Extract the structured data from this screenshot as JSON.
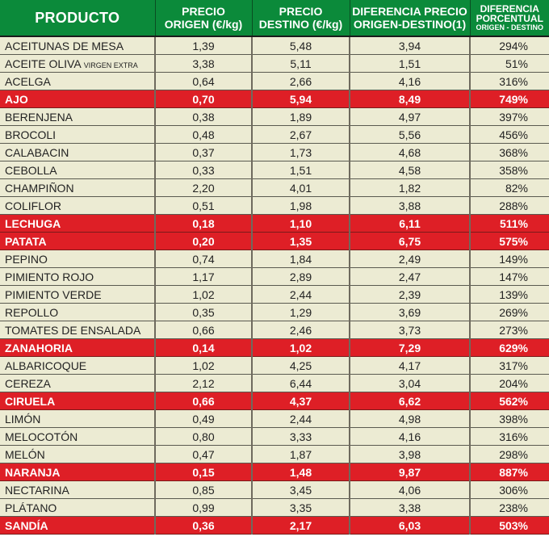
{
  "table": {
    "headers": {
      "product": "PRODUCTO",
      "origin_line1": "PRECIO",
      "origin_line2": "ORIGEN (€/kg)",
      "dest_line1": "PRECIO",
      "dest_line2": "DESTINO (€/kg)",
      "diff_line1": "DIFERENCIA PRECIO",
      "diff_line2": "ORIGEN-DESTINO(1)",
      "pct_line1": "DIFERENCIA",
      "pct_line2": "PORCENTUAL",
      "pct_line3": "ORIGEN - DESTINO"
    },
    "colors": {
      "header_bg": "#0b8a3a",
      "row_bg": "#ecebd3",
      "highlight_bg": "#de1f26",
      "highlight_text": "#ffffff"
    },
    "rows": [
      {
        "product": "ACEITUNAS DE MESA",
        "suffix": "",
        "origin": "1,39",
        "dest": "5,48",
        "diff": "3,94",
        "pct": "294%",
        "highlight": false
      },
      {
        "product": "ACEITE OLIVA ",
        "suffix": "VIRGEN EXTRA",
        "origin": "3,38",
        "dest": "5,11",
        "diff": "1,51",
        "pct": "51%",
        "highlight": false
      },
      {
        "product": "ACELGA",
        "suffix": "",
        "origin": "0,64",
        "dest": "2,66",
        "diff": "4,16",
        "pct": "316%",
        "highlight": false
      },
      {
        "product": "AJO",
        "suffix": "",
        "origin": "0,70",
        "dest": "5,94",
        "diff": "8,49",
        "pct": "749%",
        "highlight": true
      },
      {
        "product": "BERENJENA",
        "suffix": "",
        "origin": "0,38",
        "dest": "1,89",
        "diff": "4,97",
        "pct": "397%",
        "highlight": false
      },
      {
        "product": "BROCOLI",
        "suffix": "",
        "origin": "0,48",
        "dest": "2,67",
        "diff": "5,56",
        "pct": "456%",
        "highlight": false
      },
      {
        "product": "CALABACIN",
        "suffix": "",
        "origin": "0,37",
        "dest": "1,73",
        "diff": "4,68",
        "pct": "368%",
        "highlight": false
      },
      {
        "product": "CEBOLLA",
        "suffix": "",
        "origin": "0,33",
        "dest": "1,51",
        "diff": "4,58",
        "pct": "358%",
        "highlight": false
      },
      {
        "product": "CHAMPIÑON",
        "suffix": "",
        "origin": "2,20",
        "dest": "4,01",
        "diff": "1,82",
        "pct": "82%",
        "highlight": false
      },
      {
        "product": "COLIFLOR",
        "suffix": "",
        "origin": "0,51",
        "dest": "1,98",
        "diff": "3,88",
        "pct": "288%",
        "highlight": false
      },
      {
        "product": "LECHUGA",
        "suffix": "",
        "origin": "0,18",
        "dest": "1,10",
        "diff": "6,11",
        "pct": "511%",
        "highlight": true
      },
      {
        "product": "PATATA",
        "suffix": "",
        "origin": "0,20",
        "dest": "1,35",
        "diff": "6,75",
        "pct": "575%",
        "highlight": true
      },
      {
        "product": "PEPINO",
        "suffix": "",
        "origin": "0,74",
        "dest": "1,84",
        "diff": "2,49",
        "pct": "149%",
        "highlight": false
      },
      {
        "product": "PIMIENTO ROJO",
        "suffix": "",
        "origin": "1,17",
        "dest": "2,89",
        "diff": "2,47",
        "pct": "147%",
        "highlight": false
      },
      {
        "product": "PIMIENTO VERDE",
        "suffix": "",
        "origin": "1,02",
        "dest": "2,44",
        "diff": "2,39",
        "pct": "139%",
        "highlight": false
      },
      {
        "product": "REPOLLO",
        "suffix": "",
        "origin": "0,35",
        "dest": "1,29",
        "diff": "3,69",
        "pct": "269%",
        "highlight": false
      },
      {
        "product": "TOMATES DE ENSALADA",
        "suffix": "",
        "origin": "0,66",
        "dest": "2,46",
        "diff": "3,73",
        "pct": "273%",
        "highlight": false
      },
      {
        "product": "ZANAHORIA",
        "suffix": "",
        "origin": "0,14",
        "dest": "1,02",
        "diff": "7,29",
        "pct": "629%",
        "highlight": true
      },
      {
        "product": "ALBARICOQUE",
        "suffix": "",
        "origin": "1,02",
        "dest": "4,25",
        "diff": "4,17",
        "pct": "317%",
        "highlight": false
      },
      {
        "product": "CEREZA",
        "suffix": "",
        "origin": "2,12",
        "dest": "6,44",
        "diff": "3,04",
        "pct": "204%",
        "highlight": false
      },
      {
        "product": "CIRUELA",
        "suffix": "",
        "origin": "0,66",
        "dest": "4,37",
        "diff": "6,62",
        "pct": "562%",
        "highlight": true
      },
      {
        "product": "LIMÓN",
        "suffix": "",
        "origin": "0,49",
        "dest": "2,44",
        "diff": "4,98",
        "pct": "398%",
        "highlight": false
      },
      {
        "product": "MELOCOTÓN",
        "suffix": "",
        "origin": "0,80",
        "dest": "3,33",
        "diff": "4,16",
        "pct": "316%",
        "highlight": false
      },
      {
        "product": "MELÓN",
        "suffix": "",
        "origin": "0,47",
        "dest": "1,87",
        "diff": "3,98",
        "pct": "298%",
        "highlight": false
      },
      {
        "product": "NARANJA",
        "suffix": "",
        "origin": "0,15",
        "dest": "1,48",
        "diff": "9,87",
        "pct": "887%",
        "highlight": true
      },
      {
        "product": "NECTARINA",
        "suffix": "",
        "origin": "0,85",
        "dest": "3,45",
        "diff": "4,06",
        "pct": "306%",
        "highlight": false
      },
      {
        "product": "PLÁTANO",
        "suffix": "",
        "origin": "0,99",
        "dest": "3,35",
        "diff": "3,38",
        "pct": "238%",
        "highlight": false
      },
      {
        "product": "SANDÍA",
        "suffix": "",
        "origin": "0,36",
        "dest": "2,17",
        "diff": "6,03",
        "pct": "503%",
        "highlight": true
      }
    ]
  }
}
